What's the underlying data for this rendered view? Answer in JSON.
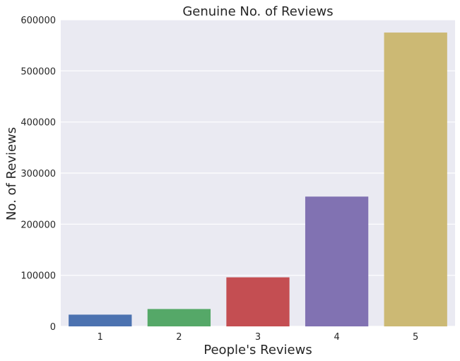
{
  "chart_data": {
    "type": "bar",
    "title": "Genuine No. of Reviews",
    "xlabel": "People's Reviews",
    "ylabel": "No. of Reviews",
    "categories": [
      "1",
      "2",
      "3",
      "4",
      "5"
    ],
    "values": [
      23000,
      34000,
      96000,
      254000,
      575000
    ],
    "ylim": [
      0,
      600000
    ],
    "yticks": [
      "0",
      "100000",
      "200000",
      "300000",
      "400000",
      "500000",
      "600000"
    ],
    "ytick_values": [
      0,
      100000,
      200000,
      300000,
      400000,
      500000,
      600000
    ],
    "colors": [
      "#4C72B0",
      "#55A868",
      "#C44E52",
      "#8172B2",
      "#CCB974"
    ],
    "background": "#EAEAF2",
    "grid": true,
    "grid_axis": "y"
  }
}
